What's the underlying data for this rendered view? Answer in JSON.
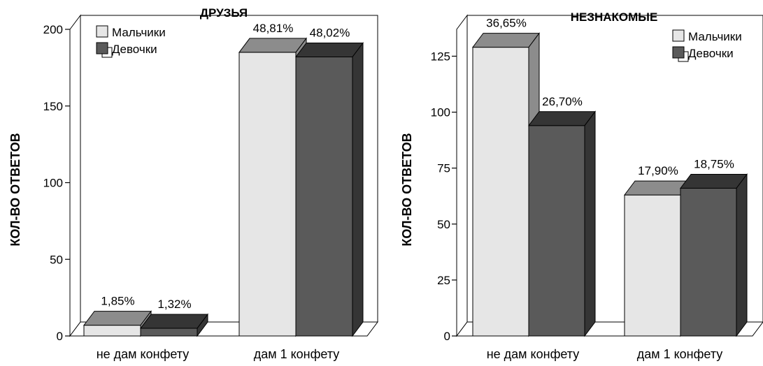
{
  "colors": {
    "boys_front": "#e6e6e6",
    "boys_top": "#8c8c8c",
    "boys_side": "#8c8c8c",
    "girls_front": "#5a5a5a",
    "girls_top": "#353535",
    "girls_side": "#353535",
    "floor": "#ffffff",
    "outline": "#000000"
  },
  "chart_data": [
    {
      "type": "bar",
      "title": "ДРУЗЬЯ",
      "ylabel": "КОЛ-ВО ОТВЕТОВ",
      "xlabel": "",
      "categories": [
        "не дам конфету",
        "дам 1 конфету"
      ],
      "ylim": [
        0,
        200
      ],
      "yticks": [
        0,
        50,
        100,
        150,
        200
      ],
      "legend_position": "top-left",
      "grid": false,
      "series": [
        {
          "name": "Мальчики",
          "values": [
            7,
            185
          ],
          "labels": [
            "1,85%",
            "48,81%"
          ]
        },
        {
          "name": "Девочки",
          "values": [
            5,
            182
          ],
          "labels": [
            "1,32%",
            "48,02%"
          ]
        }
      ]
    },
    {
      "type": "bar",
      "title": "НЕЗНАКОМЫЕ",
      "ylabel": "КОЛ-ВО ОТВЕТОВ",
      "xlabel": "",
      "categories": [
        "не дам конфету",
        "дам 1 конфету"
      ],
      "ylim": [
        0,
        137
      ],
      "yticks": [
        0,
        25,
        50,
        75,
        100,
        125
      ],
      "legend_position": "top-right",
      "grid": false,
      "series": [
        {
          "name": "Мальчики",
          "values": [
            129,
            63
          ],
          "labels": [
            "36,65%",
            "17,90%"
          ]
        },
        {
          "name": "Девочки",
          "values": [
            94,
            66
          ],
          "labels": [
            "26,70%",
            "18,75%"
          ]
        }
      ]
    }
  ]
}
